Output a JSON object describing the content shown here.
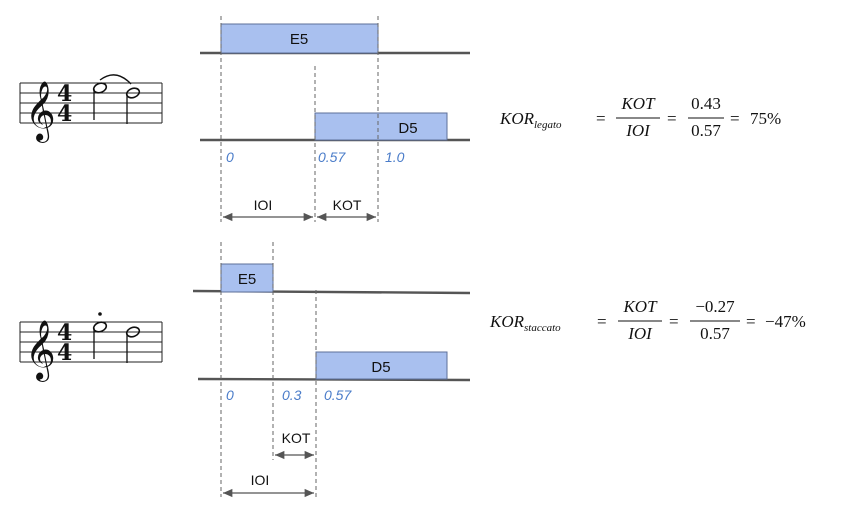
{
  "colors": {
    "note_fill": "#a9c0ef",
    "note_stroke": "#5d6f99",
    "axis": "#555555",
    "time_label": "#4a7cc9"
  },
  "legato": {
    "note1_label": "E5",
    "note2_label": "D5",
    "time_labels": [
      "0",
      "0.57",
      "1.0"
    ],
    "ioi_label": "IOI",
    "kot_label": "KOT",
    "formula": {
      "lhs_main": "KOR",
      "lhs_sub": "legato",
      "num1": "KOT",
      "den1": "IOI",
      "num2": "0.43",
      "den2": "0.57",
      "result": "75%"
    }
  },
  "staccato": {
    "note1_label": "E5",
    "note2_label": "D5",
    "time_labels": [
      "0",
      "0.3",
      "0.57"
    ],
    "ioi_label": "IOI",
    "kot_label": "KOT",
    "formula": {
      "lhs_main": "KOR",
      "lhs_sub": "staccato",
      "num1": "KOT",
      "den1": "IOI",
      "num2": "−0.27",
      "den2": "0.57",
      "result": "−47%"
    }
  },
  "music": {
    "time_sig_top": "4",
    "time_sig_bottom": "4",
    "clef_glyph": "𝄞"
  }
}
